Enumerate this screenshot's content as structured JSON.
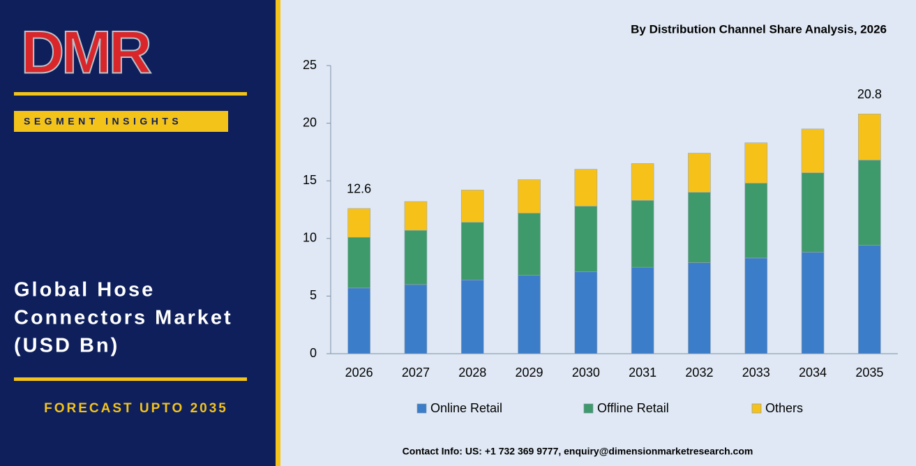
{
  "panel": {
    "logo": "DMR",
    "tag": "SEGMENT INSIGHTS",
    "title_lines": [
      "Global Hose",
      "Connectors Market",
      "(USD Bn)"
    ],
    "forecast": "FORECAST UPTO 2035"
  },
  "contact": "Contact Info: US: +1 732 369 9777, enquiry@dimensionmarketresearch.com",
  "chart_data": {
    "type": "stacked_bar",
    "title": "By Distribution Channel Share Analysis, 2026",
    "categories": [
      "2026",
      "2027",
      "2028",
      "2029",
      "2030",
      "2031",
      "2032",
      "2033",
      "2034",
      "2035"
    ],
    "series": [
      {
        "name": "Online Retail",
        "color": "#3b7dc9",
        "values": [
          5.7,
          6.0,
          6.4,
          6.8,
          7.1,
          7.5,
          7.9,
          8.3,
          8.8,
          9.4
        ]
      },
      {
        "name": "Offline Retail",
        "color": "#3e9a6a",
        "values": [
          4.4,
          4.7,
          5.0,
          5.4,
          5.7,
          5.8,
          6.1,
          6.5,
          6.9,
          7.4
        ]
      },
      {
        "name": "Others",
        "color": "#f6c21a",
        "values": [
          2.5,
          2.5,
          2.8,
          2.9,
          3.2,
          3.2,
          3.4,
          3.5,
          3.8,
          4.0
        ]
      }
    ],
    "total_labels": [
      "12.6",
      null,
      null,
      null,
      null,
      null,
      null,
      null,
      null,
      "20.8"
    ],
    "ylim": [
      0,
      25
    ],
    "yticks": [
      0,
      5,
      10,
      15,
      20,
      25
    ],
    "grid": false,
    "legend": "bottom"
  }
}
